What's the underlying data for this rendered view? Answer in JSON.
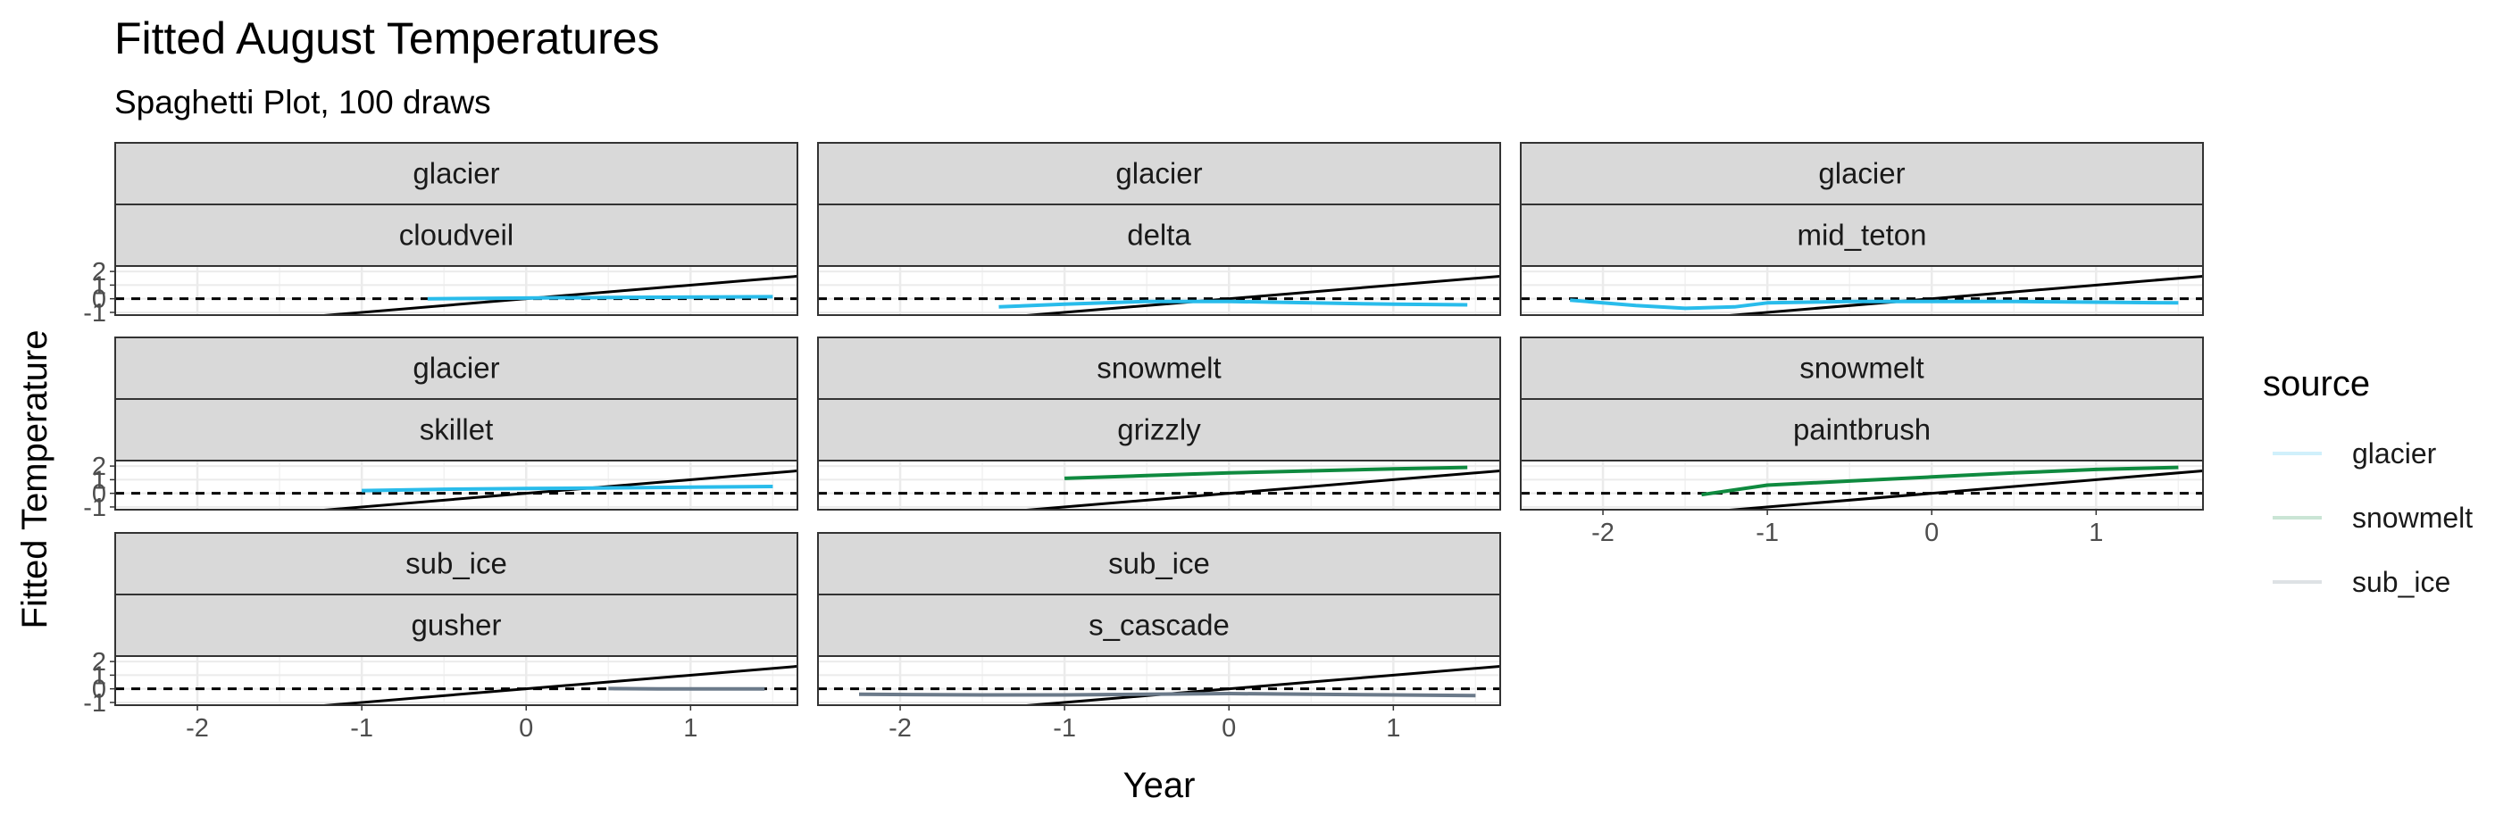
{
  "chart_data": {
    "type": "line",
    "title": "Fitted August Temperatures",
    "subtitle": "Spaghetti Plot, 100 draws",
    "xlabel": "Year",
    "ylabel": "Fitted Temperature",
    "xlim": [
      -2.5,
      1.65
    ],
    "ylim": [
      -1.2,
      2.4
    ],
    "xticks": [
      "-2",
      "-1",
      "0",
      "1"
    ],
    "xtick_values": [
      -2,
      -1,
      0,
      1
    ],
    "yticks": [
      "-1",
      "0",
      "1",
      "2"
    ],
    "ytick_values": [
      -1,
      0,
      1,
      2
    ],
    "reference_hline": 0,
    "reference_line": {
      "intercept": 0,
      "slope": 1
    },
    "grid": true,
    "legend": {
      "title": "source",
      "position": "right",
      "entries": [
        {
          "label": "glacier",
          "color": "#29BCEB"
        },
        {
          "label": "snowmelt",
          "color": "#0F8A3F"
        },
        {
          "label": "sub_ice",
          "color": "#6B7A8A"
        }
      ]
    },
    "panels": [
      {
        "source": "glacier",
        "site": "cloudveil",
        "color": "#29BCEB",
        "x": [
          -0.6,
          0,
          0.6,
          1.5
        ],
        "y": [
          0.0,
          0.05,
          0.1,
          0.15
        ]
      },
      {
        "source": "glacier",
        "site": "delta",
        "color": "#29BCEB",
        "x": [
          -1.4,
          -1.0,
          -0.5,
          0,
          0.5,
          1.0,
          1.45
        ],
        "y": [
          -0.6,
          -0.4,
          -0.2,
          -0.2,
          -0.3,
          -0.4,
          -0.45
        ]
      },
      {
        "source": "glacier",
        "site": "mid_teton",
        "color": "#29BCEB",
        "x": [
          -2.2,
          -1.8,
          -1.5,
          -1.2,
          -1.0,
          -0.5,
          0,
          0.5,
          1.5
        ],
        "y": [
          -0.1,
          -0.5,
          -0.7,
          -0.6,
          -0.3,
          -0.2,
          -0.2,
          -0.2,
          -0.3
        ]
      },
      {
        "source": "glacier",
        "site": "skillet",
        "color": "#29BCEB",
        "x": [
          -1.0,
          -0.5,
          0,
          0.5,
          1.0,
          1.5
        ],
        "y": [
          0.2,
          0.3,
          0.35,
          0.4,
          0.45,
          0.5
        ]
      },
      {
        "source": "snowmelt",
        "site": "grizzly",
        "color": "#0F8A3F",
        "x": [
          -1.0,
          -0.5,
          0,
          0.5,
          1.0,
          1.45
        ],
        "y": [
          1.1,
          1.3,
          1.5,
          1.65,
          1.8,
          1.9
        ]
      },
      {
        "source": "snowmelt",
        "site": "paintbrush",
        "color": "#0F8A3F",
        "x": [
          -1.4,
          -1.0,
          -0.5,
          0,
          0.5,
          1.0,
          1.5
        ],
        "y": [
          -0.1,
          0.6,
          0.9,
          1.2,
          1.5,
          1.75,
          1.9
        ]
      },
      {
        "source": "sub_ice",
        "site": "gusher",
        "color": "#6B7A8A",
        "x": [
          0.5,
          0.8,
          1.1,
          1.45
        ],
        "y": [
          0.02,
          0.0,
          0.0,
          0.0
        ]
      },
      {
        "source": "sub_ice",
        "site": "s_cascade",
        "color": "#6B7A8A",
        "x": [
          -2.25,
          -1.5,
          -1.0,
          -0.5,
          0,
          0.5,
          1.0,
          1.5
        ],
        "y": [
          -0.4,
          -0.45,
          -0.45,
          -0.4,
          -0.35,
          -0.4,
          -0.45,
          -0.5
        ]
      }
    ]
  }
}
